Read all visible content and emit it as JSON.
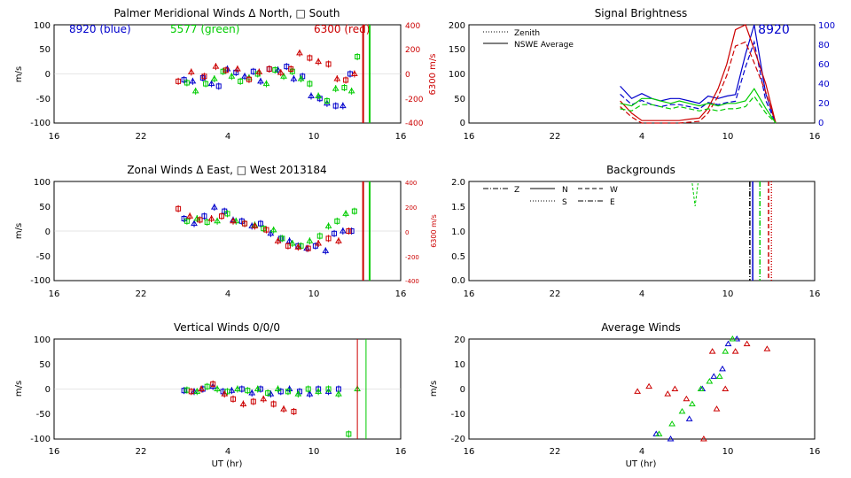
{
  "colors": {
    "blue": "#0000cc",
    "green": "#00cc00",
    "red": "#cc0000",
    "black": "#000000"
  },
  "panels": {
    "meridional": {
      "title": "Palmer Meridional Winds Δ North, □ South",
      "legend": {
        "blue": "8920 (blue)",
        "green": "5577 (green)",
        "red": "6300 (red)"
      },
      "ylabel": "m/s",
      "ylabel_right": "6300 m/s",
      "yticks": [
        "100",
        "50",
        "0",
        "-50",
        "-100"
      ],
      "yticks_right": [
        "400",
        "200",
        "0",
        "-200",
        "-400"
      ],
      "xticks": [
        "16",
        "22",
        "4",
        "10",
        "16"
      ]
    },
    "zonal": {
      "title": "Zonal Winds Δ East, □ West 2013184",
      "ylabel": "m/s",
      "ylabel_right": "6300 m/s",
      "yticks": [
        "100",
        "50",
        "0",
        "-50",
        "-100"
      ],
      "yticks_right": [
        "400",
        "200",
        "0",
        "-200",
        "-400"
      ],
      "xticks": [
        "16",
        "22",
        "4",
        "10",
        "16"
      ]
    },
    "vertical": {
      "title": "Vertical Winds 0/0/0",
      "ylabel": "m/s",
      "xlabel": "UT (hr)",
      "yticks": [
        "100",
        "50",
        "0",
        "-50",
        "-100"
      ],
      "xticks": [
        "16",
        "22",
        "4",
        "10",
        "16"
      ]
    },
    "brightness": {
      "title": "Signal Brightness",
      "legend": {
        "zenith": "Zenith",
        "average": "NSWE Average"
      },
      "annotation": "8920",
      "yticks": [
        "200",
        "150",
        "100",
        "50",
        "0"
      ],
      "yticks_right": [
        "100",
        "80",
        "60",
        "40",
        "20",
        "0"
      ],
      "xticks": [
        "16",
        "22",
        "4",
        "10",
        "16"
      ]
    },
    "backgrounds": {
      "title": "Backgrounds",
      "legend": {
        "Z": "Z",
        "N": "N",
        "W": "W",
        "S": "S",
        "E": "E"
      },
      "yticks": [
        "2.0",
        "1.5",
        "1.0",
        "0.5",
        "0.0"
      ],
      "xticks": [
        "16",
        "22",
        "4",
        "10",
        "16"
      ]
    },
    "average": {
      "title": "Average Winds",
      "ylabel": "m/s",
      "xlabel": "UT (hr)",
      "yticks": [
        "20",
        "10",
        "0",
        "-10",
        "-20"
      ],
      "xticks": [
        "16",
        "22",
        "4",
        "10",
        "16"
      ]
    }
  },
  "chart_data": [
    {
      "type": "scatter",
      "title": "Palmer Meridional Winds Δ North, □ South",
      "ylabel": "m/s",
      "ylim": [
        -100,
        100
      ],
      "xlim": [
        16,
        40
      ],
      "ylabel_right": "6300 m/s",
      "ylim_right": [
        -400,
        400
      ],
      "series": [
        {
          "name": "8920 (blue)",
          "x": [
            25.0,
            25.6,
            26.3,
            26.9,
            27.4,
            28.0,
            28.6,
            29.2,
            29.8,
            30.3,
            30.9,
            31.5,
            32.1,
            32.6,
            33.2,
            33.8,
            34.4,
            34.9,
            35.5,
            36.0,
            36.5
          ],
          "y": [
            -12,
            -15,
            -8,
            -20,
            -25,
            10,
            3,
            -5,
            5,
            -15,
            10,
            8,
            15,
            -10,
            -5,
            -45,
            -50,
            -60,
            -65,
            -65,
            0
          ]
        },
        {
          "name": "5577 (green)",
          "x": [
            25.2,
            25.8,
            26.5,
            27.1,
            27.7,
            28.3,
            28.9,
            29.5,
            30.1,
            30.7,
            31.3,
            31.9,
            32.5,
            33.1,
            33.7,
            34.3,
            34.9,
            35.5,
            36.1,
            36.6,
            37.0
          ],
          "y": [
            -18,
            -35,
            -20,
            -10,
            5,
            -5,
            -15,
            -8,
            0,
            -20,
            8,
            -5,
            5,
            -10,
            -20,
            -45,
            -55,
            -30,
            -28,
            -35,
            35
          ]
        },
        {
          "name": "6300 (red)",
          "x": [
            24.6,
            25.5,
            26.4,
            27.2,
            27.9,
            28.7,
            29.5,
            30.2,
            30.9,
            31.7,
            32.4,
            33.0,
            33.7,
            34.3,
            35.0,
            35.6,
            36.2,
            36.8
          ],
          "y": [
            -60,
            15,
            -20,
            60,
            30,
            40,
            -45,
            15,
            40,
            10,
            40,
            170,
            130,
            100,
            80,
            -40,
            -50,
            0
          ]
        }
      ]
    },
    {
      "type": "scatter",
      "title": "Zonal Winds Δ East, □ West 2013184",
      "ylabel": "m/s",
      "ylim": [
        -100,
        100
      ],
      "xlim": [
        16,
        40
      ],
      "ylabel_right": "6300 m/s",
      "ylim_right": [
        -400,
        400
      ],
      "series": [
        {
          "name": "8920 (blue)",
          "x": [
            25.0,
            25.7,
            26.4,
            27.1,
            27.8,
            28.4,
            29.0,
            29.7,
            30.3,
            31.0,
            31.7,
            32.3,
            32.9,
            33.5,
            34.1,
            34.8,
            35.4,
            36.0,
            36.6
          ],
          "y": [
            25,
            15,
            30,
            48,
            40,
            22,
            20,
            10,
            15,
            -5,
            -15,
            -20,
            -30,
            -35,
            -30,
            -40,
            -5,
            0,
            0
          ]
        },
        {
          "name": "5577 (green)",
          "x": [
            25.2,
            25.9,
            26.6,
            27.3,
            28.0,
            28.6,
            29.2,
            29.9,
            30.5,
            31.2,
            31.8,
            32.5,
            33.1,
            33.7,
            34.4,
            35.0,
            35.6,
            36.2,
            36.8
          ],
          "y": [
            20,
            25,
            18,
            20,
            35,
            20,
            15,
            12,
            5,
            2,
            -15,
            -25,
            -30,
            -20,
            -10,
            10,
            20,
            35,
            40
          ]
        },
        {
          "name": "6300 (red)",
          "x": [
            24.6,
            25.4,
            26.1,
            26.9,
            27.6,
            28.4,
            29.2,
            29.9,
            30.7,
            31.5,
            32.2,
            32.9,
            33.6,
            34.3,
            35.0,
            35.7,
            36.4
          ],
          "y": [
            180,
            120,
            90,
            100,
            120,
            80,
            60,
            40,
            10,
            -80,
            -120,
            -130,
            -140,
            -100,
            -60,
            -80,
            0
          ]
        }
      ]
    },
    {
      "type": "scatter",
      "title": "Vertical Winds 0/0/0",
      "ylabel": "m/s",
      "xlabel": "UT (hr)",
      "ylim": [
        -100,
        100
      ],
      "xlim": [
        16,
        40
      ],
      "series": [
        {
          "name": "8920 (blue)",
          "x": [
            25.0,
            25.7,
            26.3,
            27.0,
            27.7,
            28.3,
            29.0,
            29.7,
            30.3,
            31.0,
            31.7,
            32.3,
            33.0,
            33.7,
            34.3,
            35.0,
            35.7
          ],
          "y": [
            -3,
            -5,
            0,
            5,
            -5,
            -3,
            0,
            -8,
            0,
            -10,
            -5,
            0,
            -5,
            -10,
            0,
            -5,
            0
          ]
        },
        {
          "name": "5577 (green)",
          "x": [
            25.2,
            25.9,
            26.6,
            27.3,
            28.0,
            28.7,
            29.4,
            30.1,
            30.8,
            31.5,
            32.2,
            32.9,
            33.6,
            34.3,
            35.0,
            35.7,
            36.4,
            37.0
          ],
          "y": [
            -2,
            -5,
            5,
            0,
            -5,
            0,
            -3,
            0,
            -8,
            0,
            -5,
            -10,
            0,
            -5,
            0,
            -10,
            -90,
            0
          ]
        },
        {
          "name": "6300 (red)",
          "x": [
            25.5,
            26.2,
            27.0,
            27.8,
            28.4,
            29.1,
            29.8,
            30.5,
            31.2,
            31.9,
            32.6
          ],
          "y": [
            -5,
            0,
            10,
            -10,
            -20,
            -30,
            -25,
            -20,
            -30,
            -40,
            -45
          ]
        }
      ]
    },
    {
      "type": "line",
      "title": "Signal Brightness",
      "ylim": [
        0,
        200
      ],
      "ylim_right": [
        0,
        100
      ],
      "xlim": [
        16,
        40
      ],
      "series": [
        {
          "name": "8920 (blue)",
          "x": [
            26.5,
            27.3,
            28.0,
            28.7,
            29.3,
            30.0,
            30.6,
            31.3,
            32.0,
            32.6,
            33.3,
            33.9,
            34.5,
            35.2,
            35.8,
            36.6,
            37.3
          ],
          "y": [
            75,
            50,
            60,
            50,
            45,
            50,
            50,
            45,
            40,
            55,
            50,
            55,
            58,
            140,
            200,
            60,
            0
          ]
        },
        {
          "name": "6300 (red)",
          "x": [
            26.5,
            27.3,
            28.0,
            28.7,
            29.3,
            30.0,
            30.6,
            31.3,
            32.0,
            32.6,
            33.3,
            33.9,
            34.5,
            35.2,
            35.8,
            36.6,
            37.3
          ],
          "y": [
            45,
            20,
            5,
            5,
            5,
            5,
            5,
            8,
            10,
            30,
            70,
            120,
            190,
            200,
            150,
            80,
            0
          ]
        },
        {
          "name": "5577 (green)",
          "x": [
            26.5,
            27.3,
            28.0,
            28.7,
            29.3,
            30.0,
            30.6,
            31.3,
            32.0,
            32.6,
            33.3,
            33.9,
            34.5,
            35.2,
            35.8,
            36.6,
            37.3
          ],
          "y": [
            40,
            35,
            50,
            50,
            45,
            40,
            45,
            40,
            35,
            40,
            35,
            40,
            40,
            45,
            70,
            30,
            0
          ]
        }
      ]
    },
    {
      "type": "line",
      "title": "Backgrounds",
      "ylim": [
        0,
        2
      ],
      "xlim": [
        16,
        40
      ],
      "series": [
        {
          "name": "Z",
          "x": [
            35.5
          ],
          "y": [
            2.0
          ]
        },
        {
          "name": "N",
          "x": [
            35.7
          ],
          "y": [
            2.0
          ]
        },
        {
          "name": "W",
          "x": [
            36.8
          ],
          "y": [
            2.0
          ]
        },
        {
          "name": "S",
          "x": [
            37.0
          ],
          "y": [
            2.0
          ]
        },
        {
          "name": "E",
          "x": [
            36.2
          ],
          "y": [
            2.0
          ]
        }
      ]
    },
    {
      "type": "scatter",
      "title": "Average Winds",
      "ylabel": "m/s",
      "xlabel": "UT (hr)",
      "ylim": [
        -20,
        20
      ],
      "xlim": [
        16,
        40
      ],
      "series": [
        {
          "name": "8920 (blue)",
          "x": [
            29.0,
            30.0,
            31.3,
            32.2,
            33.0,
            33.6,
            34.0,
            34.6
          ],
          "y": [
            -18,
            -20,
            -12,
            0,
            5,
            8,
            18,
            20
          ]
        },
        {
          "name": "5577 (green)",
          "x": [
            28.2,
            29.2,
            30.1,
            30.8,
            31.5,
            32.1,
            32.7,
            33.4,
            33.8,
            34.3,
            34.9
          ],
          "y": [
            -22,
            -18,
            -14,
            -9,
            -6,
            0,
            3,
            5,
            15,
            20,
            21
          ]
        },
        {
          "name": "6300 (red)",
          "x": [
            27.7,
            28.5,
            29.8,
            30.3,
            31.1,
            32.3,
            32.9,
            33.2,
            33.8,
            34.5,
            35.3,
            36.7
          ],
          "y": [
            -1,
            1,
            -2,
            0,
            -4,
            -20,
            15,
            -8,
            0,
            15,
            18,
            16
          ]
        }
      ]
    }
  ]
}
